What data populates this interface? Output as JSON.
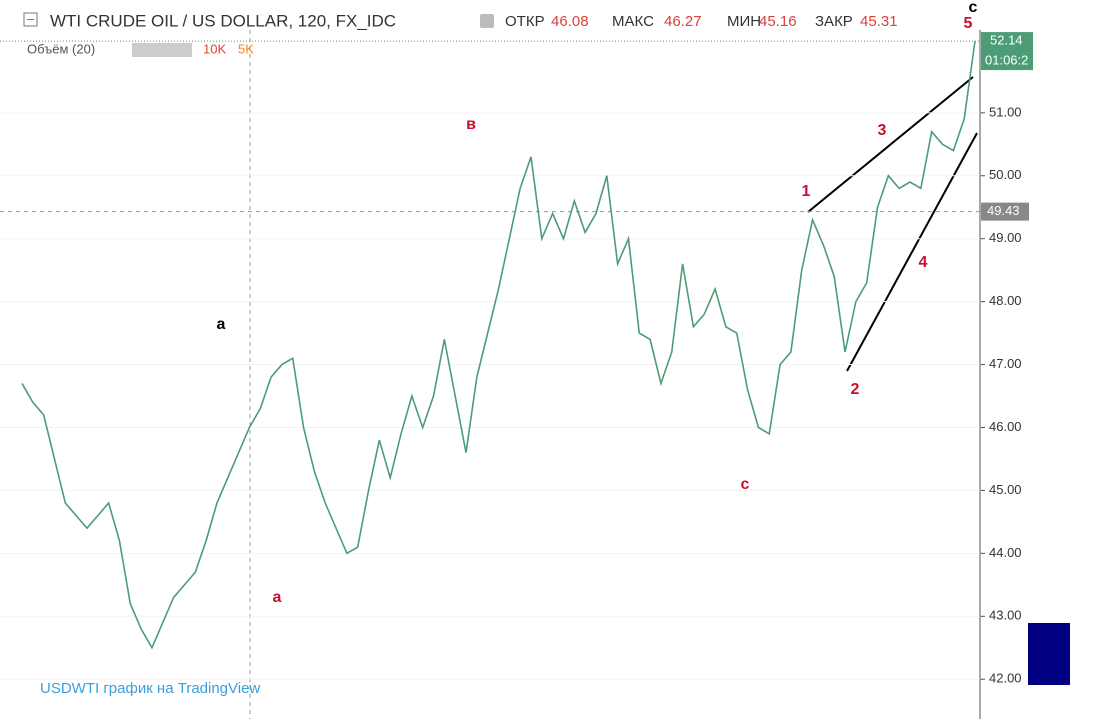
{
  "chart_data": {
    "type": "line",
    "title": "WTI CRUDE OIL / US DOLLAR, 120, FX_IDC",
    "stats": [
      {
        "label": "ОТКР",
        "value": 46.08
      },
      {
        "label": "МАКС",
        "value": 46.27
      },
      {
        "label": "МИН",
        "value": 45.16
      },
      {
        "label": "ЗАКР",
        "value": 45.31
      }
    ],
    "volume_title": "Объём (20)",
    "volume_legend": [
      "10K",
      "5K"
    ],
    "last_price": 52.14,
    "countdown": "01:06:2",
    "price_line": 49.43,
    "watermark": "USDWTI график на TradingView",
    "annotations": [
      "a",
      "a",
      "в",
      "c",
      "1",
      "2",
      "3",
      "4",
      "5",
      "c"
    ],
    "categories": [
      null,
      null,
      null,
      null,
      null,
      null,
      null,
      null,
      null,
      null,
      null,
      null,
      null,
      null,
      null,
      null,
      null,
      null,
      null,
      null,
      null,
      null,
      null,
      null,
      null,
      null,
      null,
      null,
      null,
      null,
      null,
      null,
      null,
      null,
      null,
      null,
      null,
      null,
      null,
      null,
      null,
      null,
      null,
      null,
      null,
      null,
      null,
      null,
      null,
      null,
      null,
      null,
      null,
      null,
      null,
      null,
      null,
      null,
      null,
      null,
      null,
      null,
      null,
      null,
      null,
      null,
      null,
      null,
      null,
      null,
      null,
      null,
      null,
      null,
      null,
      null,
      null,
      null,
      null,
      null,
      null,
      null,
      null,
      null,
      null,
      null,
      null,
      null,
      null
    ],
    "series": [
      {
        "name": "USDWTI",
        "color": "#4c9d76",
        "values": [
          46.7,
          46.4,
          46.2,
          45.5,
          44.8,
          44.6,
          44.4,
          44.6,
          44.8,
          44.2,
          43.2,
          42.8,
          42.5,
          42.9,
          43.3,
          43.5,
          43.7,
          44.2,
          44.8,
          45.2,
          45.6,
          46.0,
          46.3,
          46.8,
          47.0,
          47.1,
          46.0,
          45.3,
          44.8,
          44.4,
          44.0,
          44.1,
          45.0,
          45.8,
          45.2,
          45.9,
          46.5,
          46.0,
          46.5,
          47.4,
          46.5,
          45.6,
          46.8,
          47.5,
          48.2,
          49.0,
          49.8,
          50.3,
          49.0,
          49.4,
          49.0,
          49.6,
          49.1,
          49.4,
          50.0,
          48.6,
          49.0,
          47.5,
          47.4,
          46.7,
          47.2,
          48.6,
          47.6,
          47.8,
          48.2,
          47.6,
          47.5,
          46.6,
          46.0,
          45.9,
          47.0,
          47.2,
          48.5,
          49.3,
          48.9,
          48.4,
          47.2,
          48.0,
          48.3,
          49.5,
          50.0,
          49.8,
          49.9,
          49.8,
          50.7,
          50.5,
          50.4,
          50.9,
          52.14
        ]
      }
    ],
    "ylim": [
      41.4,
      52.3
    ],
    "yticks": [
      {
        "value": 42,
        "label": "42.00"
      },
      {
        "value": 43,
        "label": "43.00"
      },
      {
        "value": 44,
        "label": "44.00"
      },
      {
        "value": 45,
        "label": "45.00"
      },
      {
        "value": 46,
        "label": "46.00"
      },
      {
        "value": 47,
        "label": "47.00"
      },
      {
        "value": 48,
        "label": "48.00"
      },
      {
        "value": 49,
        "label": "49.00"
      },
      {
        "value": 50,
        "label": "50.00"
      },
      {
        "value": 51,
        "label": "51.00"
      }
    ],
    "grid": true
  }
}
